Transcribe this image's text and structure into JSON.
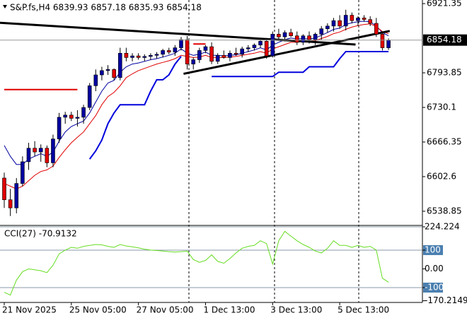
{
  "chart_data": [
    {
      "type": "candlestick",
      "title": "S&P.fs,H4  6839.93 6857.18 6835.93 6854.18",
      "categories": [
        "21 Nov 2025",
        null,
        null,
        null,
        null,
        null,
        null,
        null,
        null,
        null,
        null,
        "25 Nov 05:00",
        null,
        null,
        null,
        null,
        null,
        null,
        null,
        null,
        null,
        null,
        "27 Nov 05:00",
        null,
        null,
        null,
        null,
        null,
        null,
        null,
        null,
        null,
        null,
        "1 Dec 13:00",
        null,
        null,
        null,
        null,
        null,
        null,
        null,
        null,
        null,
        null,
        "3 Dec 13:00",
        null,
        null,
        null,
        null,
        null,
        null,
        null,
        null,
        null,
        null,
        "5 Dec 13:00",
        null,
        null,
        null,
        null,
        null,
        null,
        null,
        null
      ],
      "candles": [
        {
          "open": 6600,
          "high": 6610,
          "low": 6545,
          "close": 6560
        },
        {
          "open": 6560,
          "high": 6580,
          "low": 6530,
          "close": 6545
        },
        {
          "open": 6545,
          "high": 6600,
          "low": 6535,
          "close": 6590
        },
        {
          "open": 6590,
          "high": 6640,
          "low": 6585,
          "close": 6630
        },
        {
          "open": 6630,
          "high": 6665,
          "low": 6615,
          "close": 6655
        },
        {
          "open": 6655,
          "high": 6668,
          "low": 6640,
          "close": 6648
        },
        {
          "open": 6648,
          "high": 6662,
          "low": 6630,
          "close": 6655
        },
        {
          "open": 6655,
          "high": 6660,
          "low": 6620,
          "close": 6628
        },
        {
          "open": 6628,
          "high": 6680,
          "low": 6620,
          "close": 6672
        },
        {
          "open": 6672,
          "high": 6720,
          "low": 6665,
          "close": 6712
        },
        {
          "open": 6712,
          "high": 6722,
          "low": 6700,
          "close": 6716
        },
        {
          "open": 6716,
          "high": 6722,
          "low": 6705,
          "close": 6710
        },
        {
          "open": 6710,
          "high": 6725,
          "low": 6695,
          "close": 6712
        },
        {
          "open": 6712,
          "high": 6735,
          "low": 6700,
          "close": 6730
        },
        {
          "open": 6730,
          "high": 6775,
          "low": 6725,
          "close": 6770
        },
        {
          "open": 6770,
          "high": 6800,
          "low": 6760,
          "close": 6790
        },
        {
          "open": 6790,
          "high": 6805,
          "low": 6780,
          "close": 6798
        },
        {
          "open": 6798,
          "high": 6808,
          "low": 6790,
          "close": 6800
        },
        {
          "open": 6800,
          "high": 6802,
          "low": 6780,
          "close": 6785
        },
        {
          "open": 6785,
          "high": 6840,
          "low": 6780,
          "close": 6830
        },
        {
          "open": 6830,
          "high": 6840,
          "low": 6815,
          "close": 6822
        },
        {
          "open": 6822,
          "high": 6830,
          "low": 6815,
          "close": 6825
        },
        {
          "open": 6825,
          "high": 6830,
          "low": 6818,
          "close": 6822
        },
        {
          "open": 6822,
          "high": 6828,
          "low": 6815,
          "close": 6824
        },
        {
          "open": 6824,
          "high": 6830,
          "low": 6818,
          "close": 6826
        },
        {
          "open": 6826,
          "high": 6832,
          "low": 6820,
          "close": 6828
        },
        {
          "open": 6828,
          "high": 6838,
          "low": 6822,
          "close": 6835
        },
        {
          "open": 6835,
          "high": 6840,
          "low": 6828,
          "close": 6832
        },
        {
          "open": 6832,
          "high": 6845,
          "low": 6825,
          "close": 6840
        },
        {
          "open": 6840,
          "high": 6860,
          "low": 6835,
          "close": 6855
        },
        {
          "open": 6855,
          "high": 6862,
          "low": 6800,
          "close": 6810
        },
        {
          "open": 6810,
          "high": 6822,
          "low": 6800,
          "close": 6818
        },
        {
          "open": 6818,
          "high": 6840,
          "low": 6812,
          "close": 6835
        },
        {
          "open": 6835,
          "high": 6845,
          "low": 6830,
          "close": 6842
        },
        {
          "open": 6842,
          "high": 6850,
          "low": 6810,
          "close": 6815
        },
        {
          "open": 6815,
          "high": 6830,
          "low": 6810,
          "close": 6826
        },
        {
          "open": 6826,
          "high": 6835,
          "low": 6820,
          "close": 6822
        },
        {
          "open": 6822,
          "high": 6835,
          "low": 6815,
          "close": 6830
        },
        {
          "open": 6830,
          "high": 6840,
          "low": 6825,
          "close": 6828
        },
        {
          "open": 6828,
          "high": 6842,
          "low": 6822,
          "close": 6838
        },
        {
          "open": 6838,
          "high": 6845,
          "low": 6832,
          "close": 6840
        },
        {
          "open": 6840,
          "high": 6848,
          "low": 6835,
          "close": 6845
        },
        {
          "open": 6845,
          "high": 6855,
          "low": 6840,
          "close": 6852
        },
        {
          "open": 6852,
          "high": 6858,
          "low": 6820,
          "close": 6825
        },
        {
          "open": 6825,
          "high": 6870,
          "low": 6822,
          "close": 6865
        },
        {
          "open": 6865,
          "high": 6875,
          "low": 6855,
          "close": 6860
        },
        {
          "open": 6860,
          "high": 6872,
          "low": 6852,
          "close": 6868
        },
        {
          "open": 6868,
          "high": 6875,
          "low": 6860,
          "close": 6862
        },
        {
          "open": 6862,
          "high": 6870,
          "low": 6845,
          "close": 6850
        },
        {
          "open": 6850,
          "high": 6865,
          "low": 6845,
          "close": 6862
        },
        {
          "open": 6862,
          "high": 6870,
          "low": 6848,
          "close": 6855
        },
        {
          "open": 6855,
          "high": 6868,
          "low": 6845,
          "close": 6865
        },
        {
          "open": 6865,
          "high": 6880,
          "low": 6855,
          "close": 6875
        },
        {
          "open": 6875,
          "high": 6885,
          "low": 6868,
          "close": 6880
        },
        {
          "open": 6880,
          "high": 6895,
          "low": 6870,
          "close": 6890
        },
        {
          "open": 6890,
          "high": 6900,
          "low": 6875,
          "close": 6880
        },
        {
          "open": 6880,
          "high": 6910,
          "low": 6872,
          "close": 6900
        },
        {
          "open": 6900,
          "high": 6905,
          "low": 6885,
          "close": 6890
        },
        {
          "open": 6890,
          "high": 6898,
          "low": 6880,
          "close": 6895
        },
        {
          "open": 6895,
          "high": 6900,
          "low": 6888,
          "close": 6892
        },
        {
          "open": 6892,
          "high": 6898,
          "low": 6880,
          "close": 6885
        },
        {
          "open": 6885,
          "high": 6895,
          "low": 6860,
          "close": 6865
        },
        {
          "open": 6865,
          "high": 6870,
          "low": 6835,
          "close": 6840
        },
        {
          "open": 6839.93,
          "high": 6857.18,
          "low": 6835.93,
          "close": 6854.18
        }
      ],
      "bull_color": "#0000a0",
      "bear_color": "#e00000",
      "series": [
        {
          "color": "#0000a0",
          "values": [
            6660,
            6640,
            6625,
            6625,
            6635,
            6640,
            6645,
            6640,
            6648,
            6668,
            6685,
            6695,
            6700,
            6705,
            6720,
            6740,
            6760,
            6775,
            6780,
            6795,
            6805,
            6810,
            6812,
            6815,
            6818,
            6820,
            6823,
            6826,
            6830,
            6838,
            6830,
            6826,
            6828,
            6832,
            6826,
            6826,
            6825,
            6826,
            6827,
            6830,
            6833,
            6836,
            6840,
            6836,
            6845,
            6850,
            6855,
            6858,
            6856,
            6857,
            6856,
            6858,
            6863,
            6868,
            6874,
            6876,
            6883,
            6886,
            6888,
            6889,
            6888,
            6880,
            6868,
            6862
          ]
        },
        {
          "color": "#e00000",
          "values": [
            6590,
            6585,
            6580,
            6585,
            6595,
            6605,
            6612,
            6615,
            6622,
            6638,
            6652,
            6665,
            6675,
            6685,
            6700,
            6715,
            6735,
            6750,
            6758,
            6770,
            6785,
            6792,
            6798,
            6802,
            6806,
            6810,
            6813,
            6816,
            6820,
            6826,
            6824,
            6822,
            6823,
            6826,
            6822,
            6822,
            6822,
            6823,
            6824,
            6826,
            6828,
            6830,
            6833,
            6830,
            6838,
            6842,
            6846,
            6850,
            6850,
            6852,
            6852,
            6853,
            6857,
            6861,
            6866,
            6869,
            6874,
            6878,
            6881,
            6883,
            6884,
            6879,
            6870,
            6866
          ]
        },
        {
          "color": "#0000dd",
          "width": 2,
          "values": [
            null,
            null,
            null,
            null,
            null,
            null,
            null,
            null,
            null,
            null,
            null,
            null,
            null,
            null,
            6635,
            6650,
            6670,
            6700,
            6720,
            6735,
            6735,
            6735,
            6735,
            6735,
            6760,
            6781,
            6781,
            6790,
            6810,
            6824,
            null,
            null,
            null,
            null,
            6787,
            6787,
            6787,
            6787,
            6787,
            6787,
            6787,
            6787,
            6787,
            6787,
            6787,
            6795,
            6795,
            6795,
            6795,
            6795,
            6805,
            6805,
            6805,
            6805,
            6805,
            6820,
            6833,
            6833,
            6833,
            6833,
            6833,
            6833,
            6833,
            6833
          ]
        },
        {
          "color": "#e00000",
          "width": 2,
          "values": [
            6763,
            6763,
            6763,
            6763,
            6763,
            6763,
            6763,
            6763,
            6763,
            6763,
            6763,
            6763,
            6763,
            null,
            null,
            null,
            null,
            null,
            null,
            null,
            null,
            null,
            null,
            null,
            null,
            null,
            null,
            null,
            null,
            null,
            null,
            6847,
            6847,
            6847,
            null,
            null,
            null,
            null,
            null,
            null,
            null,
            null,
            null,
            null,
            null,
            null,
            null,
            null,
            null,
            null,
            null,
            null,
            null,
            null,
            null,
            null,
            null,
            null,
            null,
            null,
            null,
            null,
            null,
            null
          ]
        }
      ],
      "trendlines": [
        {
          "color": "#000000",
          "x": [
            -0.7,
            57.6
          ],
          "y": [
            6886,
            6846
          ]
        },
        {
          "color": "#000000",
          "x": [
            29.4,
            63.2
          ],
          "y": [
            6792,
            6871
          ]
        }
      ],
      "current_price": 6854.18,
      "ylim": [
        6514,
        6928
      ],
      "yticks": [
        6921.35,
        6793.85,
        6730.1,
        6666.35,
        6602.6,
        6538.85
      ]
    },
    {
      "type": "line",
      "title": "CCI(27) -70.9132",
      "series": [
        {
          "color": "#66dd22",
          "values": [
            -125,
            -140,
            -60,
            -15,
            0,
            -5,
            -10,
            -20,
            20,
            80,
            100,
            115,
            110,
            120,
            125,
            130,
            128,
            120,
            115,
            130,
            122,
            118,
            112,
            105,
            100,
            98,
            95,
            92,
            90,
            92,
            95,
            50,
            35,
            45,
            75,
            40,
            30,
            55,
            85,
            110,
            120,
            125,
            150,
            135,
            25,
            150,
            200,
            175,
            150,
            130,
            115,
            95,
            85,
            110,
            150,
            125,
            125,
            115,
            125,
            115,
            120,
            100,
            -50,
            -70.9132
          ]
        }
      ],
      "ylim": [
        -170.2149,
        224.224
      ],
      "yticks": [
        224.224,
        100,
        {
          "value": 0,
          "label": "0.00"
        },
        -100,
        -170.2149
      ],
      "level_lines": [
        224.224,
        100,
        -100
      ]
    }
  ]
}
